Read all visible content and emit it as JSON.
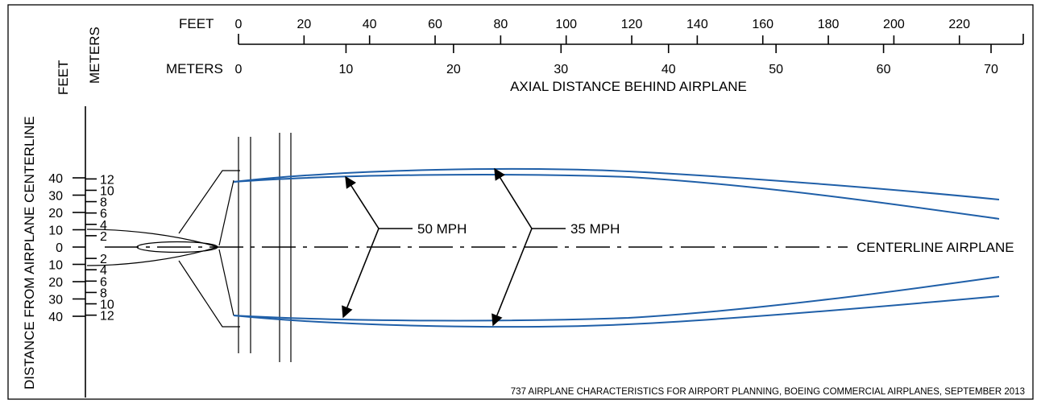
{
  "top_axis": {
    "feet_label": "FEET",
    "meters_label": "METERS",
    "feet_ticks": [
      "0",
      "20",
      "40",
      "60",
      "80",
      "100",
      "120",
      "140",
      "160",
      "180",
      "200",
      "220"
    ],
    "meters_ticks": [
      "0",
      "10",
      "20",
      "30",
      "40",
      "50",
      "60",
      "70"
    ],
    "title": "AXIAL DISTANCE BEHIND AIRPLANE"
  },
  "side_axis": {
    "feet_label": "FEET",
    "meters_label": "METERS",
    "title": "DISTANCE FROM AIRPLANE CENTERLINE",
    "feet_ticks": [
      "40",
      "30",
      "20",
      "10",
      "0",
      "10",
      "20",
      "30",
      "40"
    ],
    "meters_ticks": [
      "12",
      "10",
      "8",
      "6",
      "4",
      "2",
      "2",
      "4",
      "6",
      "8",
      "10",
      "12"
    ]
  },
  "contours": {
    "inner_label": "50 MPH",
    "outer_label": "35 MPH",
    "color": "#1f5fa8"
  },
  "centerline_label": "CENTERLINE AIRPLANE",
  "source_note": "737 AIRPLANE CHARACTERISTICS FOR AIRPORT PLANNING, BOEING COMMERCIAL AIRPLANES, SEPTEMBER 2013"
}
